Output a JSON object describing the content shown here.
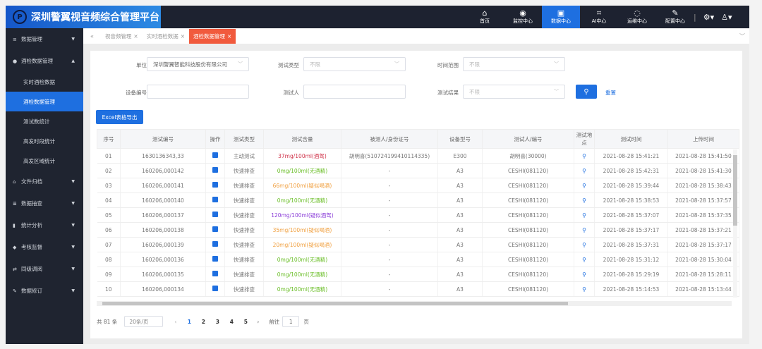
{
  "header": {
    "title": "深圳警翼视音频综合管理平台",
    "logo_text": "P",
    "nav": [
      {
        "label": "首页",
        "icon": "home-icon",
        "glyph": "⌂"
      },
      {
        "label": "监控中心",
        "icon": "camera-icon",
        "glyph": "◉"
      },
      {
        "label": "数据中心",
        "icon": "monitor-icon",
        "glyph": "▣",
        "active": true
      },
      {
        "label": "AI中心",
        "icon": "face-scan-icon",
        "glyph": "⌗"
      },
      {
        "label": "运维中心",
        "icon": "cycle-icon",
        "glyph": "◌"
      },
      {
        "label": "配置中心",
        "icon": "wrench-icon",
        "glyph": "✎"
      }
    ],
    "settings_glyph": "⚙▾",
    "user_glyph": "♙▾"
  },
  "sidebar": {
    "items": [
      {
        "label": "数据管理",
        "glyph": "≡"
      },
      {
        "label": "酒检数据管理",
        "glyph": "●",
        "open": true
      },
      {
        "label": "文件归档",
        "glyph": "⌂"
      },
      {
        "label": "数据抽查",
        "glyph": "≣"
      },
      {
        "label": "统计分析",
        "glyph": "▮"
      },
      {
        "label": "考核监督",
        "glyph": "◆"
      },
      {
        "label": "同级调阅",
        "glyph": "⇄"
      },
      {
        "label": "数据修订",
        "glyph": "✎"
      }
    ],
    "sub_items": [
      "实时酒检数据",
      "酒检数据管理",
      "测试数统计",
      "高发时段统计",
      "高发区域统计"
    ],
    "active_sub": 1
  },
  "tabs": {
    "collapse": "«",
    "items": [
      "视音频管理",
      "实时酒检数据",
      "酒检数据管理"
    ],
    "active": 2,
    "more": "﹀"
  },
  "filters": {
    "unit_label": "单位",
    "unit_value": "深圳警翼智能科技股份有限公司",
    "type_label": "测试类型",
    "type_value": "不限",
    "time_label": "时间范围",
    "time_value": "不限",
    "device_label": "设备编号",
    "device_value": "",
    "tester_label": "测试人",
    "tester_value": "",
    "result_label": "测试结果",
    "result_value": "不限",
    "reset": "重置",
    "export": "Excel表格导出"
  },
  "table": {
    "headers": [
      "序号",
      "测试编号",
      "操作",
      "测试类型",
      "测试含量",
      "被测人/身份证号",
      "设备型号",
      "测试人/编号",
      "测试地点",
      "测试时间",
      "上传时间"
    ],
    "rows": [
      [
        "01",
        "1630136343,33",
        "主动测试",
        "37mg/100ml(酒驾)",
        "red",
        "胡明喜(510724199410114335)",
        "E300",
        "胡明喜(30000)",
        "2021-08-28 15:41:21",
        "2021-08-28 15:41:50"
      ],
      [
        "02",
        "160206,000142",
        "快速排查",
        "0mg/100ml(无酒精)",
        "green",
        "-",
        "A3",
        "CESHI(081120)",
        "2021-08-28 15:42:31",
        "2021-08-28 15:41:30"
      ],
      [
        "03",
        "160206,000141",
        "快速排查",
        "66mg/100ml(疑似喝酒)",
        "orange",
        "-",
        "A3",
        "CESHI(081120)",
        "2021-08-28 15:39:44",
        "2021-08-28 15:38:43"
      ],
      [
        "04",
        "160206,000140",
        "快速排查",
        "0mg/100ml(无酒精)",
        "green",
        "-",
        "A3",
        "CESHI(081120)",
        "2021-08-28 15:38:53",
        "2021-08-28 15:37:57"
      ],
      [
        "05",
        "160206,000137",
        "快速排查",
        "120mg/100ml(疑似酒驾)",
        "purple",
        "-",
        "A3",
        "CESHI(081120)",
        "2021-08-28 15:37:07",
        "2021-08-28 15:37:35"
      ],
      [
        "06",
        "160206,000138",
        "快速排查",
        "35mg/100ml(疑似喝酒)",
        "orange",
        "-",
        "A3",
        "CESHI(081120)",
        "2021-08-28 15:37:17",
        "2021-08-28 15:37:21"
      ],
      [
        "07",
        "160206,000139",
        "快速排查",
        "20mg/100ml(疑似喝酒)",
        "orange",
        "-",
        "A3",
        "CESHI(081120)",
        "2021-08-28 15:37:31",
        "2021-08-28 15:37:17"
      ],
      [
        "08",
        "160206,000136",
        "快速排查",
        "0mg/100ml(无酒精)",
        "green",
        "-",
        "A3",
        "CESHI(081120)",
        "2021-08-28 15:31:12",
        "2021-08-28 15:30:04"
      ],
      [
        "09",
        "160206,000135",
        "快速排查",
        "0mg/100ml(无酒精)",
        "green",
        "-",
        "A3",
        "CESHI(081120)",
        "2021-08-28 15:29:19",
        "2021-08-28 15:28:11"
      ],
      [
        "10",
        "160206,000134",
        "快速排查",
        "0mg/100ml(无酒精)",
        "green",
        "-",
        "A3",
        "CESHI(081120)",
        "2021-08-28 15:14:53",
        "2021-08-28 15:13:44"
      ]
    ]
  },
  "colors": {
    "red": "#d0334a",
    "green": "#6cbf2a",
    "orange": "#f0a040",
    "purple": "#8a3cd8",
    "accent": "#1e6fe0",
    "tab_active": "#f15a3d"
  },
  "pager": {
    "total": "共 81 条",
    "page_size": "20条/页",
    "pages": [
      "1",
      "2",
      "3",
      "4",
      "5"
    ],
    "current": "1",
    "prev": "‹",
    "next": "›",
    "goto_label": "前往",
    "goto_value": "1",
    "page_unit": "页"
  }
}
